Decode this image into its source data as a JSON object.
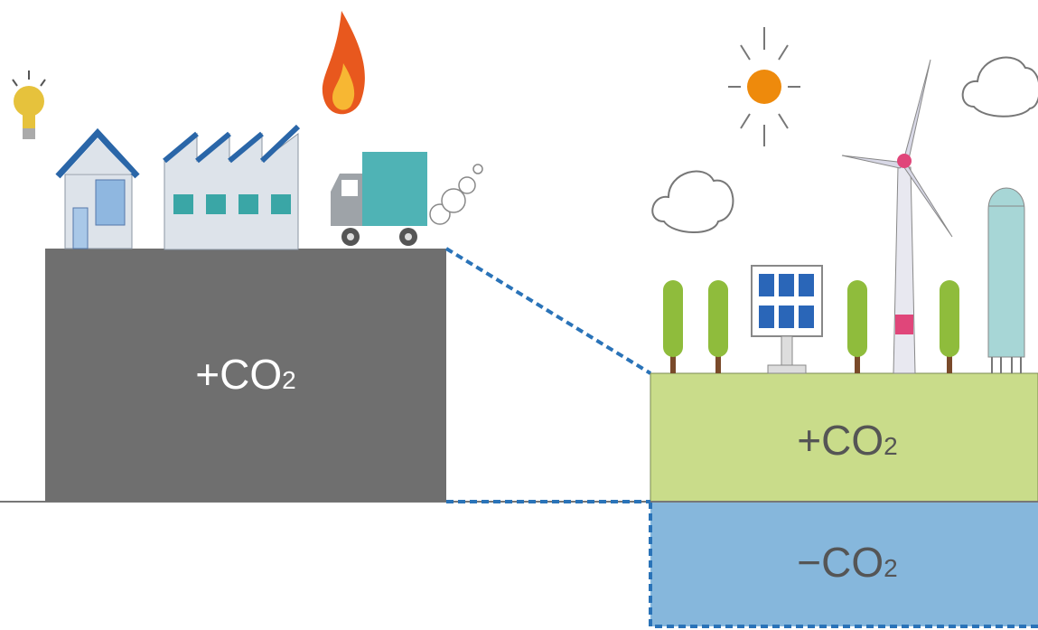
{
  "blocks": [
    {
      "label": "+CO",
      "sub": "2"
    },
    {
      "label": "+CO",
      "sub": "2"
    },
    {
      "label": "−CO",
      "sub": "2"
    }
  ]
}
